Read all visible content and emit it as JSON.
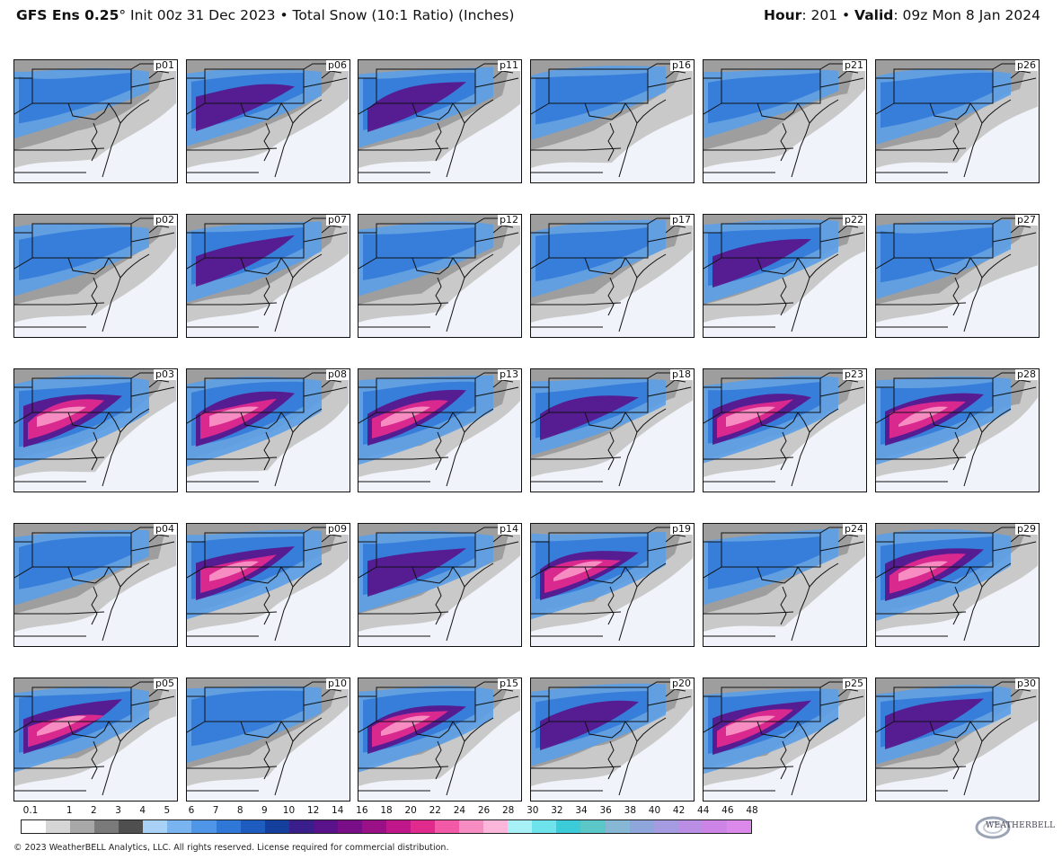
{
  "header": {
    "model": "GFS Ens 0.25",
    "degree": "°",
    "init": " Init 00z 31 Dec 2023",
    "sep": " • ",
    "product": "Total Snow (10:1 Ratio) (Inches)",
    "hour_label": "Hour",
    "hour_value": ": 201",
    "valid_label": "Valid",
    "valid_value": ": 09z Mon 8 Jan 2024"
  },
  "panels": [
    {
      "label": "p01",
      "intensity": 0.2
    },
    {
      "label": "p06",
      "intensity": 0.45
    },
    {
      "label": "p11",
      "intensity": 0.5
    },
    {
      "label": "p16",
      "intensity": 0.25
    },
    {
      "label": "p21",
      "intensity": 0.2
    },
    {
      "label": "p26",
      "intensity": 0.4
    },
    {
      "label": "p02",
      "intensity": 0.3
    },
    {
      "label": "p07",
      "intensity": 0.5
    },
    {
      "label": "p12",
      "intensity": 0.3
    },
    {
      "label": "p17",
      "intensity": 0.35
    },
    {
      "label": "p22",
      "intensity": 0.55
    },
    {
      "label": "p27",
      "intensity": 0.4
    },
    {
      "label": "p03",
      "intensity": 0.85
    },
    {
      "label": "p08",
      "intensity": 0.8
    },
    {
      "label": "p13",
      "intensity": 0.75
    },
    {
      "label": "p18",
      "intensity": 0.45
    },
    {
      "label": "p23",
      "intensity": 0.7
    },
    {
      "label": "p28",
      "intensity": 0.75
    },
    {
      "label": "p04",
      "intensity": 0.3
    },
    {
      "label": "p09",
      "intensity": 0.75
    },
    {
      "label": "p14",
      "intensity": 0.55
    },
    {
      "label": "p19",
      "intensity": 0.75
    },
    {
      "label": "p24",
      "intensity": 0.3
    },
    {
      "label": "p29",
      "intensity": 0.8
    },
    {
      "label": "p05",
      "intensity": 0.7
    },
    {
      "label": "p10",
      "intensity": 0.4
    },
    {
      "label": "p15",
      "intensity": 0.7
    },
    {
      "label": "p20",
      "intensity": 0.5
    },
    {
      "label": "p25",
      "intensity": 0.75
    },
    {
      "label": "p30",
      "intensity": 0.45
    }
  ],
  "legend": {
    "ticks": [
      "0.1",
      "1",
      "2",
      "3",
      "4",
      "5",
      "6",
      "7",
      "8",
      "9",
      "10",
      "12",
      "14",
      "16",
      "18",
      "20",
      "22",
      "24",
      "26",
      "28",
      "30",
      "32",
      "34",
      "36",
      "38",
      "40",
      "42",
      "44",
      "46",
      "48"
    ],
    "colors": [
      "#ffffff",
      "#d6d6d6",
      "#a8a8a8",
      "#7a7a7a",
      "#4f4f4f",
      "#a9d0f5",
      "#79b4f0",
      "#4f96e8",
      "#2f78d8",
      "#1f5cc0",
      "#153f9c",
      "#3a1f8c",
      "#5a128a",
      "#7a0e88",
      "#9a1086",
      "#c0178a",
      "#e02a8e",
      "#f25aa8",
      "#f78cc2",
      "#fbb6d9",
      "#a7f0f5",
      "#6fe3ec",
      "#3ccbd8",
      "#5bc7c8",
      "#86b7d4",
      "#8ea6dc",
      "#a49be0",
      "#b98ee4",
      "#cc84e6",
      "#dc8aea"
    ]
  },
  "footer": {
    "copyright": "© 2023 WeatherBELL Analytics, LLC. All rights reserved. License required for commercial distribution.",
    "logo_text": "WEATHERBELL"
  }
}
